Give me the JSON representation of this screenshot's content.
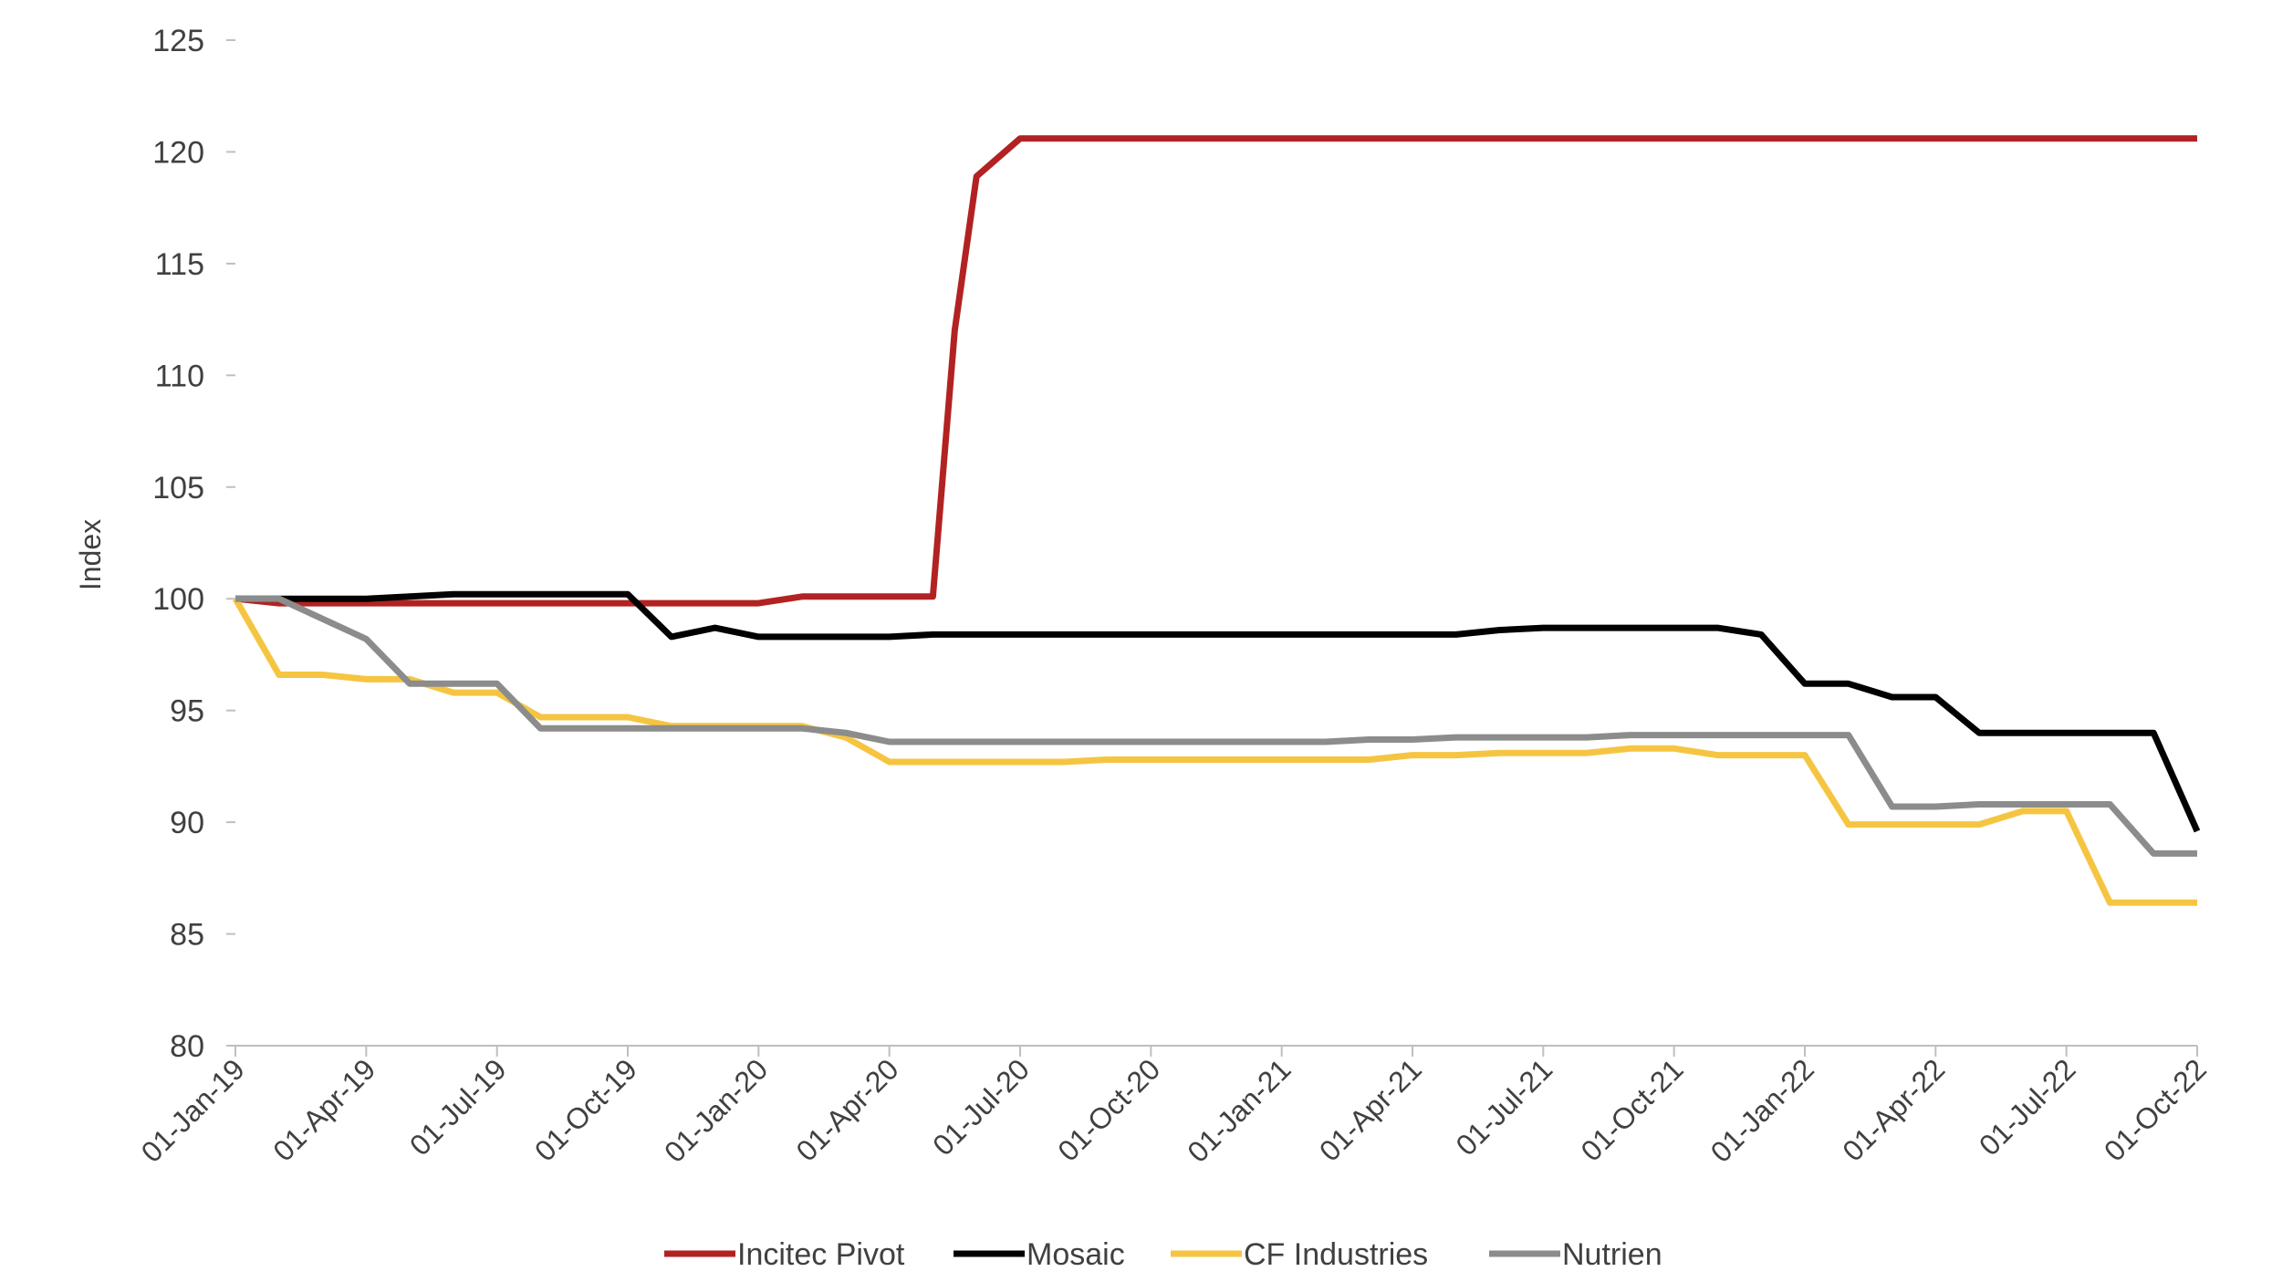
{
  "chart_data": {
    "type": "line",
    "title": "",
    "xlabel": "",
    "ylabel": "Index",
    "ylim": [
      80,
      125
    ],
    "yticks": [
      80,
      85,
      90,
      95,
      100,
      105,
      110,
      115,
      120,
      125
    ],
    "xlim_months": [
      0,
      45
    ],
    "xtick_labels": [
      "01-Jan-19",
      "01-Apr-19",
      "01-Jul-19",
      "01-Oct-19",
      "01-Jan-20",
      "01-Apr-20",
      "01-Jul-20",
      "01-Oct-20",
      "01-Jan-21",
      "01-Apr-21",
      "01-Jul-21",
      "01-Oct-21",
      "01-Jan-22",
      "01-Apr-22",
      "01-Jul-22",
      "01-Oct-22"
    ],
    "grid": false,
    "legend_position": "bottom",
    "x_dates": [
      "01-Jan-19",
      "01-Feb-19",
      "01-Mar-19",
      "01-Apr-19",
      "01-May-19",
      "01-Jun-19",
      "01-Jul-19",
      "01-Aug-19",
      "01-Sep-19",
      "01-Oct-19",
      "01-Nov-19",
      "01-Dec-19",
      "01-Jan-20",
      "01-Feb-20",
      "01-Mar-20",
      "01-Apr-20",
      "01-May-20",
      "01-Jun-20",
      "01-Jul-20",
      "01-Aug-20",
      "01-Sep-20",
      "01-Oct-20",
      "01-Nov-20",
      "01-Dec-20",
      "01-Jan-21",
      "01-Feb-21",
      "01-Mar-21",
      "01-Apr-21",
      "01-May-21",
      "01-Jun-21",
      "01-Jul-21",
      "01-Aug-21",
      "01-Sep-21",
      "01-Oct-21",
      "01-Nov-21",
      "01-Dec-21",
      "01-Jan-22",
      "01-Feb-22",
      "01-Mar-22",
      "01-Apr-22",
      "01-May-22",
      "01-Jun-22",
      "01-Jul-22",
      "01-Aug-22",
      "01-Sep-22",
      "01-Oct-22"
    ],
    "series": [
      {
        "name": "Incitec Pivot",
        "color": "#b22222",
        "x": [
          0,
          1,
          2,
          3,
          4,
          5,
          6,
          7,
          8,
          9,
          10,
          11,
          12,
          13,
          14,
          15,
          16,
          16.5,
          17,
          18,
          19,
          20,
          21,
          22,
          23,
          24,
          25,
          26,
          27,
          28,
          29,
          30,
          31,
          32,
          33,
          34,
          35,
          36,
          37,
          38,
          39,
          40,
          41,
          42,
          43,
          44,
          45
        ],
        "values": [
          100,
          99.8,
          99.8,
          99.8,
          99.8,
          99.8,
          99.8,
          99.8,
          99.8,
          99.8,
          99.8,
          99.8,
          99.8,
          100.1,
          100.1,
          100.1,
          100.1,
          112,
          118.9,
          120.6,
          120.6,
          120.6,
          120.6,
          120.6,
          120.6,
          120.6,
          120.6,
          120.6,
          120.6,
          120.6,
          120.6,
          120.6,
          120.6,
          120.6,
          120.6,
          120.6,
          120.6,
          120.6,
          120.6,
          120.6,
          120.6,
          120.6,
          120.6,
          120.6,
          120.6,
          120.6,
          120.6
        ]
      },
      {
        "name": "Mosaic",
        "color": "#000000",
        "x": [
          0,
          1,
          2,
          3,
          4,
          5,
          6,
          7,
          8,
          9,
          10,
          11,
          12,
          13,
          14,
          15,
          16,
          17,
          18,
          19,
          20,
          21,
          22,
          23,
          24,
          25,
          26,
          27,
          28,
          29,
          30,
          31,
          32,
          33,
          34,
          35,
          36,
          37,
          38,
          39,
          40,
          41,
          42,
          43,
          44,
          45
        ],
        "values": [
          100,
          100,
          100,
          100,
          100.1,
          100.2,
          100.2,
          100.2,
          100.2,
          100.2,
          98.3,
          98.7,
          98.3,
          98.3,
          98.3,
          98.3,
          98.4,
          98.4,
          98.4,
          98.4,
          98.4,
          98.4,
          98.4,
          98.4,
          98.4,
          98.4,
          98.4,
          98.4,
          98.4,
          98.6,
          98.7,
          98.7,
          98.7,
          98.7,
          98.7,
          98.4,
          96.2,
          96.2,
          95.6,
          95.6,
          94,
          94,
          94,
          94,
          94,
          89.6
        ]
      },
      {
        "name": "CF Industries",
        "color": "#f5c542",
        "x": [
          0,
          1,
          2,
          3,
          4,
          5,
          6,
          7,
          8,
          9,
          10,
          11,
          12,
          13,
          14,
          15,
          16,
          17,
          18,
          19,
          20,
          21,
          22,
          23,
          24,
          25,
          26,
          27,
          28,
          29,
          30,
          31,
          32,
          33,
          34,
          35,
          36,
          37,
          38,
          39,
          40,
          41,
          42,
          43,
          44,
          45
        ],
        "values": [
          100,
          96.6,
          96.6,
          96.4,
          96.4,
          95.8,
          95.8,
          94.7,
          94.7,
          94.7,
          94.3,
          94.3,
          94.3,
          94.3,
          93.8,
          92.7,
          92.7,
          92.7,
          92.7,
          92.7,
          92.8,
          92.8,
          92.8,
          92.8,
          92.8,
          92.8,
          92.8,
          93,
          93,
          93.1,
          93.1,
          93.1,
          93.3,
          93.3,
          93,
          93,
          93,
          89.9,
          89.9,
          89.9,
          89.9,
          90.5,
          90.5,
          86.4,
          86.4,
          86.4
        ]
      },
      {
        "name": "Nutrien",
        "color": "#8c8c8c",
        "x": [
          0,
          1,
          2,
          3,
          4,
          5,
          6,
          7,
          8,
          9,
          10,
          11,
          12,
          13,
          14,
          15,
          16,
          17,
          18,
          19,
          20,
          21,
          22,
          23,
          24,
          25,
          26,
          27,
          28,
          29,
          30,
          31,
          32,
          33,
          34,
          35,
          36,
          37,
          38,
          39,
          40,
          41,
          42,
          43,
          44,
          45
        ],
        "values": [
          100,
          100,
          99.1,
          98.2,
          96.2,
          96.2,
          96.2,
          94.2,
          94.2,
          94.2,
          94.2,
          94.2,
          94.2,
          94.2,
          94,
          93.6,
          93.6,
          93.6,
          93.6,
          93.6,
          93.6,
          93.6,
          93.6,
          93.6,
          93.6,
          93.6,
          93.7,
          93.7,
          93.8,
          93.8,
          93.8,
          93.8,
          93.9,
          93.9,
          93.9,
          93.9,
          93.9,
          93.9,
          90.7,
          90.7,
          90.8,
          90.8,
          90.8,
          90.8,
          88.6,
          88.6
        ]
      }
    ]
  }
}
